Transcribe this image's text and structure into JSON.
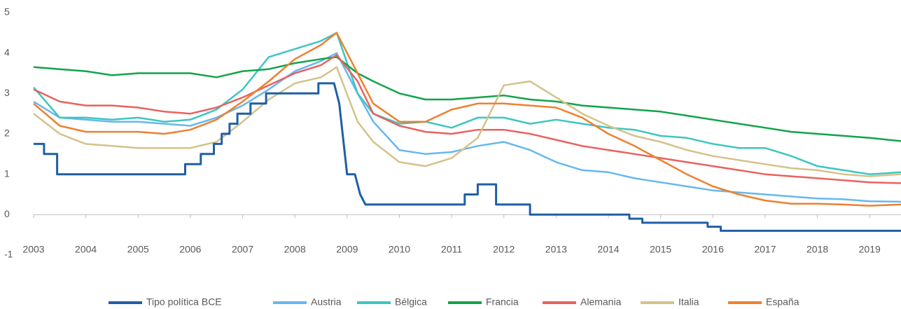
{
  "chart_data": {
    "type": "line",
    "x": [
      2003,
      2003.5,
      2004,
      2004.5,
      2005,
      2005.5,
      2006,
      2006.5,
      2007,
      2007.5,
      2008,
      2008.5,
      2008.8,
      2009.2,
      2009.5,
      2010,
      2010.5,
      2011,
      2011.5,
      2012,
      2012.5,
      2013,
      2013.5,
      2014,
      2014.5,
      2015,
      2015.5,
      2016,
      2016.5,
      2017,
      2017.5,
      2018,
      2018.5,
      2019,
      2019.6
    ],
    "series": [
      {
        "name": "Tipo política BCE",
        "color": "#1f5fa6",
        "x": [
          2003,
          2003.2,
          2003.2,
          2003.45,
          2003.45,
          2005.9,
          2005.9,
          2006.2,
          2006.2,
          2006.45,
          2006.45,
          2006.6,
          2006.6,
          2006.75,
          2006.75,
          2006.9,
          2006.9,
          2007.15,
          2007.15,
          2007.45,
          2007.45,
          2008.45,
          2008.45,
          2008.75,
          2008.85,
          2009.0,
          2009.15,
          2009.25,
          2009.35,
          2011.25,
          2011.25,
          2011.5,
          2011.5,
          2011.85,
          2011.85,
          2012.5,
          2012.5,
          2014.4,
          2014.4,
          2014.65,
          2014.65,
          2015.9,
          2015.9,
          2016.15,
          2016.15,
          2019.6
        ],
        "values": [
          1.75,
          1.75,
          1.5,
          1.5,
          1.0,
          1.0,
          1.25,
          1.25,
          1.5,
          1.5,
          1.75,
          1.75,
          2.0,
          2.0,
          2.25,
          2.25,
          2.5,
          2.5,
          2.75,
          2.75,
          3.0,
          3.0,
          3.25,
          3.25,
          2.75,
          1.0,
          1.0,
          0.5,
          0.25,
          0.25,
          0.5,
          0.5,
          0.75,
          0.75,
          0.25,
          0.25,
          0,
          0,
          -0.1,
          -0.1,
          -0.2,
          -0.2,
          -0.3,
          -0.3,
          -0.4,
          -0.4
        ]
      },
      {
        "name": "Austria",
        "color": "#66b8ef",
        "values": [
          2.8,
          2.4,
          2.35,
          2.3,
          2.3,
          2.25,
          2.2,
          2.4,
          2.7,
          3.1,
          3.55,
          3.8,
          4.0,
          3.0,
          2.3,
          1.6,
          1.5,
          1.55,
          1.7,
          1.8,
          1.6,
          1.3,
          1.1,
          1.05,
          0.9,
          0.8,
          0.7,
          0.6,
          0.55,
          0.5,
          0.45,
          0.4,
          0.38,
          0.33,
          0.32
        ]
      },
      {
        "name": "Bélgica",
        "color": "#3cc6c0",
        "values": [
          3.15,
          2.4,
          2.4,
          2.35,
          2.4,
          2.3,
          2.35,
          2.6,
          3.1,
          3.9,
          4.1,
          4.3,
          4.5,
          3.0,
          2.5,
          2.25,
          2.3,
          2.15,
          2.4,
          2.4,
          2.25,
          2.35,
          2.25,
          2.15,
          2.1,
          1.95,
          1.9,
          1.75,
          1.65,
          1.65,
          1.45,
          1.2,
          1.1,
          1.0,
          1.05
        ]
      },
      {
        "name": "Francia",
        "color": "#12a34a",
        "values": [
          3.65,
          3.6,
          3.55,
          3.45,
          3.5,
          3.5,
          3.5,
          3.4,
          3.55,
          3.6,
          3.75,
          3.85,
          3.9,
          3.5,
          3.3,
          3.0,
          2.85,
          2.85,
          2.9,
          2.95,
          2.85,
          2.8,
          2.7,
          2.65,
          2.6,
          2.55,
          2.45,
          2.35,
          2.25,
          2.15,
          2.05,
          2.0,
          1.95,
          1.9,
          1.82
        ]
      },
      {
        "name": "Alemania",
        "color": "#e8625f",
        "values": [
          3.1,
          2.8,
          2.7,
          2.7,
          2.65,
          2.55,
          2.5,
          2.65,
          2.9,
          3.2,
          3.5,
          3.7,
          3.95,
          3.3,
          2.5,
          2.2,
          2.05,
          2.0,
          2.1,
          2.1,
          2.0,
          1.85,
          1.7,
          1.6,
          1.5,
          1.4,
          1.3,
          1.2,
          1.1,
          1.0,
          0.95,
          0.9,
          0.85,
          0.8,
          0.78
        ]
      },
      {
        "name": "Italia",
        "color": "#d4c28a",
        "values": [
          2.5,
          2.0,
          1.75,
          1.7,
          1.65,
          1.65,
          1.65,
          1.8,
          2.3,
          2.85,
          3.25,
          3.4,
          3.65,
          2.3,
          1.8,
          1.3,
          1.2,
          1.4,
          1.9,
          3.2,
          3.3,
          2.9,
          2.5,
          2.2,
          1.95,
          1.8,
          1.6,
          1.45,
          1.35,
          1.25,
          1.15,
          1.1,
          1.0,
          0.95,
          1.0
        ]
      },
      {
        "name": "España",
        "color": "#ee8030",
        "values": [
          2.75,
          2.2,
          2.05,
          2.05,
          2.05,
          2.0,
          2.1,
          2.35,
          2.8,
          3.3,
          3.85,
          4.2,
          4.5,
          3.5,
          2.75,
          2.3,
          2.3,
          2.6,
          2.75,
          2.75,
          2.7,
          2.65,
          2.4,
          2.0,
          1.7,
          1.35,
          1.0,
          0.7,
          0.5,
          0.35,
          0.27,
          0.27,
          0.25,
          0.22,
          0.25
        ]
      }
    ],
    "xlim": [
      2003,
      2019.6
    ],
    "xticks": [
      2003,
      2004,
      2005,
      2006,
      2007,
      2008,
      2009,
      2010,
      2011,
      2012,
      2013,
      2014,
      2015,
      2016,
      2017,
      2018,
      2019
    ],
    "ylim": [
      -1,
      5
    ],
    "yticks": [
      -1,
      0,
      1,
      2,
      3,
      4,
      5
    ],
    "legend": "bottom"
  }
}
